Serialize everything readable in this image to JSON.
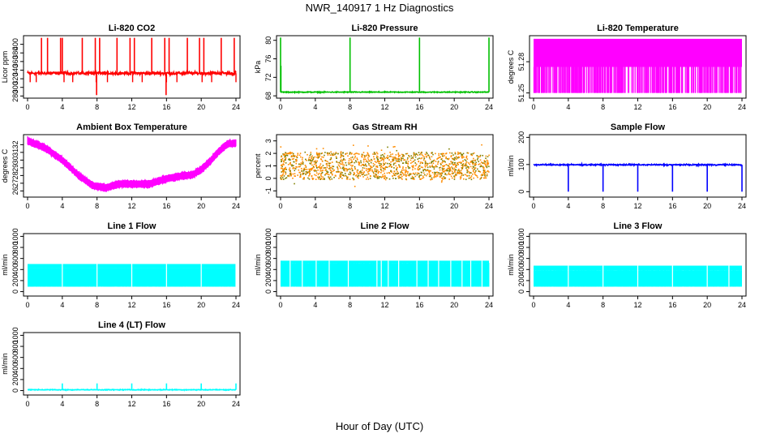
{
  "page": {
    "title": "NWR_140917 1 Hz Diagnostics",
    "xlabel": "Hour of Day (UTC)"
  },
  "chart_data": [
    {
      "type": "line",
      "title": "Li-820 CO2",
      "ylabel": "Licor ppm",
      "color": "#ff0000",
      "xlim": [
        0,
        24
      ],
      "ylim": [
        275,
        420
      ],
      "yticks": [
        280,
        300,
        320,
        340,
        360,
        380,
        400
      ],
      "xticks": [
        0,
        4,
        8,
        12,
        16,
        20,
        24
      ],
      "pattern": "baseline-spikes",
      "baseline": 333,
      "noise": 3,
      "spikes_up": [
        1.6,
        2.3,
        3.8,
        4.0,
        6.3,
        7.8,
        8.3,
        10.3,
        11.8,
        12.3,
        14.3,
        15.8,
        16.3,
        18.4,
        19.8,
        20.3,
        22.3,
        23.8
      ],
      "spikes_up_top": 415,
      "spikes_down": [
        0.3,
        1.0,
        4.2,
        5.2,
        7.9,
        9.2,
        12.1,
        13.2,
        16.0,
        17.2,
        20.1,
        21.2,
        24.0
      ],
      "spikes_down_bottom": 312,
      "deep_dips": [
        7.95,
        15.95
      ],
      "deep_dip_bottom": 282
    },
    {
      "type": "line",
      "title": "Li-820 Pressure",
      "ylabel": "kPa",
      "color": "#00c000",
      "xlim": [
        0,
        24
      ],
      "ylim": [
        67.5,
        81
      ],
      "yticks": [
        68,
        72,
        76,
        80
      ],
      "xticks": [
        0,
        4,
        8,
        12,
        16,
        20,
        24
      ],
      "pattern": "pressure",
      "baseline": 68.8,
      "noise": 0.08,
      "spikes_up": [
        0.0,
        8.0,
        16.0,
        24.0
      ],
      "spikes_up_top": 80.6
    },
    {
      "type": "line",
      "title": "Li-820 Temperature",
      "ylabel": "degrees C",
      "color": "#ff00ff",
      "xlim": [
        0,
        24
      ],
      "ylim": [
        51.245,
        51.305
      ],
      "yticks": [
        51.25,
        51.28
      ],
      "xticks": [
        0,
        4,
        8,
        12,
        16,
        20,
        24
      ],
      "pattern": "two-level",
      "low": 51.25,
      "high": 51.275,
      "top": 51.302
    },
    {
      "type": "line",
      "title": "Ambient Box Temperature",
      "ylabel": "degrees C",
      "color": "#ff00ff",
      "xlim": [
        0,
        24
      ],
      "ylim": [
        25.2,
        33.3
      ],
      "yticks": [
        26,
        27,
        28,
        29,
        30,
        31,
        32
      ],
      "xticks": [
        0,
        4,
        8,
        12,
        16,
        20,
        24
      ],
      "pattern": "curve",
      "noise": 0.35,
      "curve_x": [
        0,
        2,
        4,
        6,
        7.5,
        9,
        10.5,
        12,
        14,
        16,
        17.5,
        19,
        20,
        21,
        22,
        23,
        24
      ],
      "curve_y": [
        32.5,
        31.6,
        30.0,
        27.9,
        26.7,
        26.4,
        26.9,
        26.9,
        26.9,
        27.6,
        27.9,
        28.1,
        28.8,
        29.8,
        31.1,
        32.1,
        32.2
      ]
    },
    {
      "type": "scatter",
      "title": "Gas Stream RH",
      "ylabel": "percent",
      "color": "#ff8c00",
      "secondary_color": "#808000",
      "xlim": [
        0,
        24
      ],
      "ylim": [
        -1.5,
        3.5
      ],
      "yticks": [
        -1,
        0,
        1,
        2,
        3
      ],
      "xticks": [
        0,
        4,
        8,
        12,
        16,
        20,
        24
      ],
      "pattern": "band",
      "center": 1.0,
      "spread": 1.1,
      "outlier": 0.7
    },
    {
      "type": "line",
      "title": "Sample Flow",
      "ylabel": "ml/min",
      "color": "#0000ff",
      "xlim": [
        0,
        24
      ],
      "ylim": [
        -20,
        210
      ],
      "yticks": [
        0,
        100,
        200
      ],
      "xticks": [
        0,
        4,
        8,
        12,
        16,
        20,
        24
      ],
      "pattern": "flow-drops",
      "baseline": 99,
      "noise": 2,
      "drops": [
        4.0,
        8.0,
        12.0,
        16.0,
        20.0,
        24.0
      ],
      "drop_bottom": 0
    },
    {
      "type": "line",
      "title": "Line 1 Flow",
      "ylabel": "ml/min",
      "color": "#00ffff",
      "xlim": [
        0,
        24
      ],
      "ylim": [
        -80,
        1050
      ],
      "yticks": [
        0,
        200,
        400,
        600,
        800,
        1000
      ],
      "xticks": [
        0,
        4,
        8,
        12,
        16,
        20,
        24
      ],
      "pattern": "two-level",
      "low": 90,
      "high": 420,
      "top": 500,
      "gaps": [
        4,
        8,
        12,
        16,
        20,
        24
      ]
    },
    {
      "type": "line",
      "title": "Line 2 Flow",
      "ylabel": "ml/min",
      "color": "#00ffff",
      "xlim": [
        0,
        24
      ],
      "ylim": [
        -80,
        1050
      ],
      "yticks": [
        0,
        200,
        400,
        600,
        800,
        1000
      ],
      "xticks": [
        0,
        4,
        8,
        12,
        16,
        20,
        24
      ],
      "pattern": "two-level",
      "low": 90,
      "high": 520,
      "top": 560,
      "gaps": [
        1.1,
        2.5,
        4.1,
        5.6,
        7.8,
        11.1,
        11.6,
        12.4,
        13.6,
        15.7,
        17.0,
        18.2,
        19.6,
        20.9,
        21.9,
        23.2
      ]
    },
    {
      "type": "line",
      "title": "Line 3 Flow",
      "ylabel": "ml/min",
      "color": "#00ffff",
      "xlim": [
        0,
        24
      ],
      "ylim": [
        -80,
        1050
      ],
      "yticks": [
        0,
        200,
        400,
        600,
        800,
        1000
      ],
      "xticks": [
        0,
        4,
        8,
        12,
        16,
        20,
        24
      ],
      "pattern": "two-level",
      "low": 90,
      "high": 380,
      "top": 470,
      "gaps": [
        4,
        8,
        12,
        16,
        20,
        22.5
      ]
    },
    {
      "type": "line",
      "title": "Line 4 (LT) Flow",
      "ylabel": "ml/min",
      "color": "#00ffff",
      "xlim": [
        0,
        24
      ],
      "ylim": [
        -80,
        1050
      ],
      "yticks": [
        0,
        200,
        400,
        600,
        800,
        1000
      ],
      "xticks": [
        0,
        4,
        8,
        12,
        16,
        20,
        24
      ],
      "pattern": "baseline-spikes",
      "baseline": 15,
      "noise": 6,
      "spikes_up": [
        4.0,
        8.0,
        12.0,
        16.0,
        20.0,
        24.0
      ],
      "spikes_up_top": 130
    }
  ]
}
